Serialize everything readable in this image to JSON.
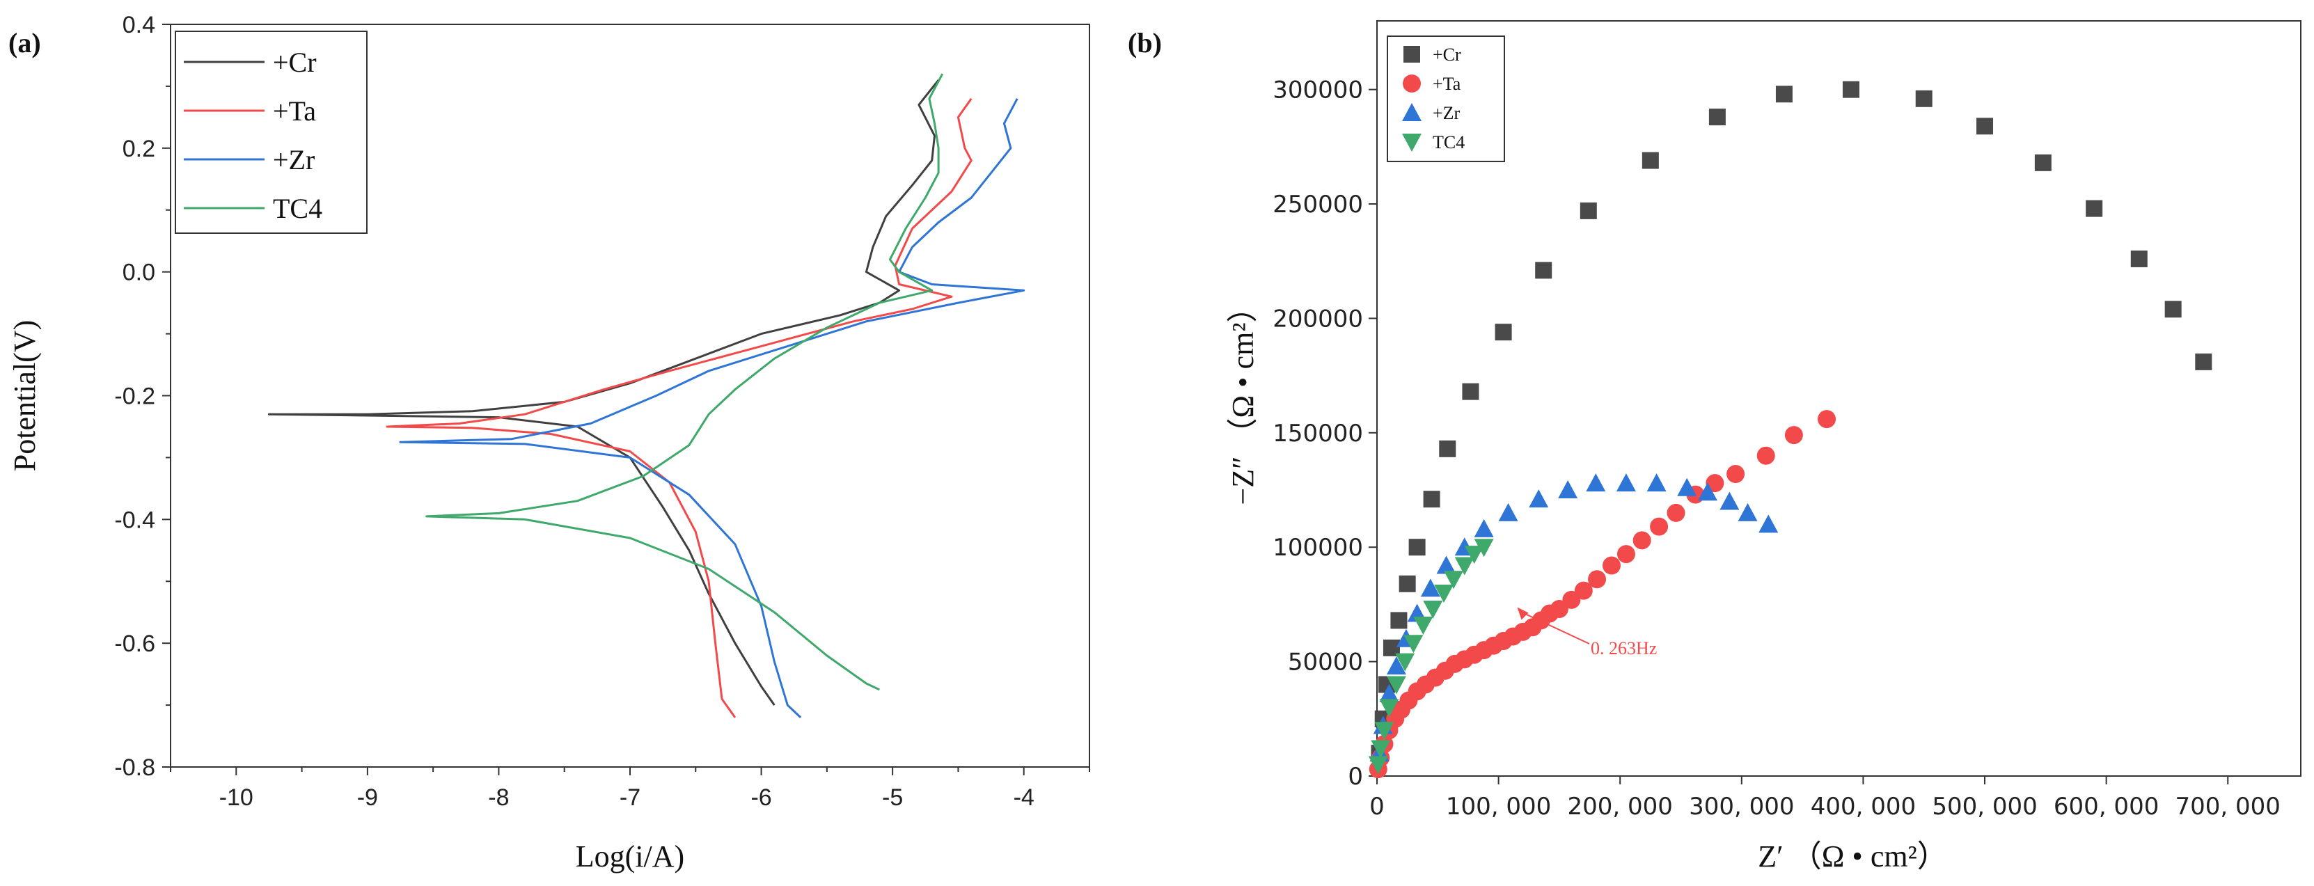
{
  "chart_data": [
    {
      "panel_label": "(a)",
      "type": "line",
      "xlabel": "Log(i/A)",
      "ylabel": "Potential(V)",
      "xlim": [
        -10.5,
        -3.5
      ],
      "ylim": [
        -0.8,
        0.4
      ],
      "xticks": [
        "-10",
        "-9",
        "-8",
        "-7",
        "-6",
        "-5",
        "-4"
      ],
      "yticks": [
        "-0.8",
        "-0.6",
        "-0.4",
        "-0.2",
        "0.0",
        "0.2",
        "0.4"
      ],
      "legend_position": "top-left",
      "series": [
        {
          "name": "+Cr",
          "color": "#404040",
          "points": [
            [
              -4.65,
              0.31
            ],
            [
              -4.8,
              0.27
            ],
            [
              -4.68,
              0.22
            ],
            [
              -4.7,
              0.18
            ],
            [
              -4.85,
              0.14
            ],
            [
              -5.05,
              0.09
            ],
            [
              -5.15,
              0.04
            ],
            [
              -5.2,
              0.0
            ],
            [
              -4.95,
              -0.03
            ],
            [
              -5.1,
              -0.05
            ],
            [
              -5.4,
              -0.07
            ],
            [
              -6.0,
              -0.1
            ],
            [
              -6.5,
              -0.14
            ],
            [
              -7.0,
              -0.18
            ],
            [
              -7.5,
              -0.21
            ],
            [
              -8.2,
              -0.225
            ],
            [
              -9.0,
              -0.23
            ],
            [
              -9.75,
              -0.23
            ],
            [
              -9.0,
              -0.232
            ],
            [
              -8.0,
              -0.235
            ],
            [
              -7.4,
              -0.25
            ],
            [
              -7.0,
              -0.3
            ],
            [
              -6.75,
              -0.38
            ],
            [
              -6.55,
              -0.45
            ],
            [
              -6.4,
              -0.52
            ],
            [
              -6.2,
              -0.6
            ],
            [
              -6.0,
              -0.67
            ],
            [
              -5.9,
              -0.7
            ]
          ]
        },
        {
          "name": "+Ta",
          "color": "#f24a4a",
          "points": [
            [
              -4.4,
              0.28
            ],
            [
              -4.5,
              0.25
            ],
            [
              -4.45,
              0.2
            ],
            [
              -4.4,
              0.18
            ],
            [
              -4.55,
              0.13
            ],
            [
              -4.85,
              0.07
            ],
            [
              -4.98,
              0.01
            ],
            [
              -4.95,
              -0.02
            ],
            [
              -4.55,
              -0.04
            ],
            [
              -4.85,
              -0.06
            ],
            [
              -5.3,
              -0.08
            ],
            [
              -6.0,
              -0.12
            ],
            [
              -6.7,
              -0.16
            ],
            [
              -7.2,
              -0.19
            ],
            [
              -7.8,
              -0.23
            ],
            [
              -8.3,
              -0.245
            ],
            [
              -8.85,
              -0.25
            ],
            [
              -8.2,
              -0.252
            ],
            [
              -7.6,
              -0.262
            ],
            [
              -7.0,
              -0.29
            ],
            [
              -6.7,
              -0.34
            ],
            [
              -6.5,
              -0.42
            ],
            [
              -6.4,
              -0.5
            ],
            [
              -6.35,
              -0.6
            ],
            [
              -6.3,
              -0.69
            ],
            [
              -6.2,
              -0.72
            ]
          ]
        },
        {
          "name": "+Zr",
          "color": "#2f75d6",
          "points": [
            [
              -4.05,
              0.28
            ],
            [
              -4.15,
              0.24
            ],
            [
              -4.1,
              0.2
            ],
            [
              -4.25,
              0.16
            ],
            [
              -4.4,
              0.12
            ],
            [
              -4.65,
              0.08
            ],
            [
              -4.85,
              0.04
            ],
            [
              -4.95,
              0.0
            ],
            [
              -4.7,
              -0.02
            ],
            [
              -4.0,
              -0.03
            ],
            [
              -4.5,
              -0.05
            ],
            [
              -5.2,
              -0.08
            ],
            [
              -5.8,
              -0.12
            ],
            [
              -6.4,
              -0.16
            ],
            [
              -6.8,
              -0.2
            ],
            [
              -7.3,
              -0.245
            ],
            [
              -7.9,
              -0.27
            ],
            [
              -8.75,
              -0.275
            ],
            [
              -7.8,
              -0.278
            ],
            [
              -7.0,
              -0.3
            ],
            [
              -6.55,
              -0.36
            ],
            [
              -6.2,
              -0.44
            ],
            [
              -6.0,
              -0.54
            ],
            [
              -5.9,
              -0.63
            ],
            [
              -5.8,
              -0.7
            ],
            [
              -5.7,
              -0.72
            ]
          ]
        },
        {
          "name": "TC4",
          "color": "#3fa86b",
          "points": [
            [
              -4.62,
              0.32
            ],
            [
              -4.72,
              0.28
            ],
            [
              -4.68,
              0.24
            ],
            [
              -4.65,
              0.2
            ],
            [
              -4.65,
              0.16
            ],
            [
              -4.75,
              0.12
            ],
            [
              -4.9,
              0.07
            ],
            [
              -5.02,
              0.02
            ],
            [
              -4.95,
              -0.0
            ],
            [
              -4.7,
              -0.03
            ],
            [
              -5.1,
              -0.05
            ],
            [
              -5.5,
              -0.09
            ],
            [
              -5.9,
              -0.14
            ],
            [
              -6.2,
              -0.19
            ],
            [
              -6.4,
              -0.23
            ],
            [
              -6.55,
              -0.28
            ],
            [
              -6.9,
              -0.33
            ],
            [
              -7.4,
              -0.37
            ],
            [
              -8.0,
              -0.39
            ],
            [
              -8.55,
              -0.395
            ],
            [
              -7.8,
              -0.4
            ],
            [
              -7.0,
              -0.43
            ],
            [
              -6.4,
              -0.48
            ],
            [
              -5.9,
              -0.55
            ],
            [
              -5.5,
              -0.62
            ],
            [
              -5.2,
              -0.665
            ],
            [
              -5.1,
              -0.675
            ]
          ]
        }
      ]
    },
    {
      "panel_label": "(b)",
      "type": "scatter",
      "xlabel": "Z′ （Ω • cm²）",
      "ylabel": "−Z″ （Ω • cm²）",
      "xlim": [
        0,
        760000
      ],
      "ylim": [
        0,
        330000
      ],
      "xticks": [
        "0",
        "100, 000",
        "200, 000",
        "300, 000",
        "400, 000",
        "500, 000",
        "600, 000",
        "700, 000"
      ],
      "yticks": [
        "0",
        "50000",
        "100000",
        "150000",
        "200000",
        "250000",
        "300000"
      ],
      "legend_position": "top-left",
      "annotation": {
        "text": "0. 263Hz",
        "x": 112000,
        "y": 78000
      },
      "series": [
        {
          "name": "+Cr",
          "marker": "square",
          "color": "#4a4a4a",
          "points": [
            [
              2000,
              10000
            ],
            [
              5000,
              25000
            ],
            [
              8000,
              40000
            ],
            [
              12000,
              56000
            ],
            [
              18000,
              68000
            ],
            [
              25000,
              84000
            ],
            [
              33000,
              100000
            ],
            [
              45000,
              121000
            ],
            [
              58000,
              143000
            ],
            [
              77000,
              168000
            ],
            [
              104000,
              194000
            ],
            [
              137000,
              221000
            ],
            [
              174000,
              247000
            ],
            [
              225000,
              269000
            ],
            [
              280000,
              288000
            ],
            [
              335000,
              298000
            ],
            [
              390000,
              300000
            ],
            [
              450000,
              296000
            ],
            [
              500000,
              284000
            ],
            [
              548000,
              268000
            ],
            [
              590000,
              248000
            ],
            [
              627000,
              226000
            ],
            [
              655000,
              204000
            ],
            [
              680000,
              181000
            ]
          ]
        },
        {
          "name": "+Ta",
          "marker": "circle",
          "color": "#f24a4a",
          "points": [
            [
              1000,
              3000
            ],
            [
              3000,
              8000
            ],
            [
              6000,
              14000
            ],
            [
              10000,
              20000
            ],
            [
              15000,
              25000
            ],
            [
              20000,
              29000
            ],
            [
              26000,
              33000
            ],
            [
              33000,
              37000
            ],
            [
              40000,
              40000
            ],
            [
              48000,
              43000
            ],
            [
              56000,
              46000
            ],
            [
              64000,
              49000
            ],
            [
              72000,
              51000
            ],
            [
              80000,
              53000
            ],
            [
              88000,
              55000
            ],
            [
              96000,
              57000
            ],
            [
              104000,
              59000
            ],
            [
              112000,
              61000
            ],
            [
              120000,
              63000
            ],
            [
              128000,
              65000
            ],
            [
              135000,
              68000
            ],
            [
              142000,
              71000
            ],
            [
              150000,
              73000
            ],
            [
              160000,
              77000
            ],
            [
              170000,
              81000
            ],
            [
              181000,
              86000
            ],
            [
              193000,
              92000
            ],
            [
              205000,
              97000
            ],
            [
              218000,
              103000
            ],
            [
              232000,
              109000
            ],
            [
              246000,
              115000
            ],
            [
              262000,
              123000
            ],
            [
              278000,
              128000
            ],
            [
              295000,
              132000
            ],
            [
              320000,
              140000
            ],
            [
              343000,
              149000
            ],
            [
              370000,
              156000
            ]
          ]
        },
        {
          "name": "+Zr",
          "marker": "triangle-up",
          "color": "#2f75d6",
          "points": [
            [
              2000,
              10000
            ],
            [
              5000,
              22000
            ],
            [
              10000,
              36000
            ],
            [
              16000,
              48000
            ],
            [
              24000,
              60000
            ],
            [
              33000,
              71000
            ],
            [
              44000,
              82000
            ],
            [
              57000,
              92000
            ],
            [
              72000,
              100000
            ],
            [
              88000,
              108000
            ],
            [
              108000,
              115000
            ],
            [
              133000,
              121000
            ],
            [
              157000,
              125000
            ],
            [
              180000,
              128000
            ],
            [
              205000,
              128000
            ],
            [
              230000,
              128000
            ],
            [
              255000,
              126000
            ],
            [
              272000,
              124000
            ],
            [
              290000,
              120000
            ],
            [
              305000,
              115000
            ],
            [
              322000,
              110000
            ]
          ]
        },
        {
          "name": "TC4",
          "marker": "triangle-down",
          "color": "#3fa86b",
          "points": [
            [
              1000,
              5000
            ],
            [
              3000,
              12000
            ],
            [
              6000,
              20000
            ],
            [
              10000,
              30000
            ],
            [
              16000,
              40000
            ],
            [
              23000,
              50000
            ],
            [
              30000,
              58000
            ],
            [
              38000,
              66000
            ],
            [
              46000,
              73000
            ],
            [
              55000,
              80000
            ],
            [
              63000,
              86000
            ],
            [
              72000,
              92000
            ],
            [
              80000,
              97000
            ],
            [
              88000,
              100000
            ]
          ]
        }
      ]
    }
  ]
}
